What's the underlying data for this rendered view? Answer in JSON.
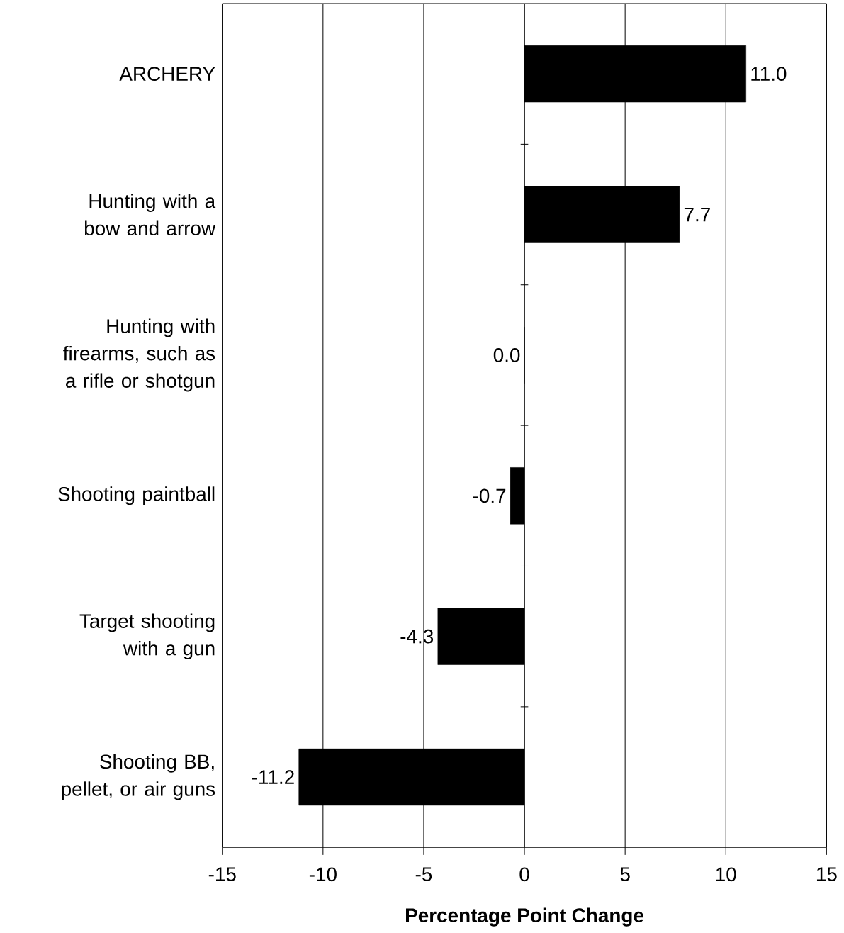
{
  "chart_data": {
    "type": "bar",
    "orientation": "horizontal",
    "xlabel": "Percentage Point Change",
    "categories": [
      "ARCHERY",
      "Hunting with a bow and arrow",
      "Hunting with firearms, such as a rifle or shotgun",
      "Shooting paintball",
      "Target shooting with a gun",
      "Shooting BB, pellet, or air guns"
    ],
    "values": [
      11.0,
      7.7,
      0.0,
      -0.7,
      -4.3,
      -11.2
    ],
    "value_labels": [
      "11.0",
      "7.7",
      "0.0",
      "-0.7",
      "-4.3",
      "-11.2"
    ],
    "color": "#000000",
    "xlim": [
      -15,
      15
    ],
    "xticks": [
      -15,
      -10,
      -5,
      0,
      5,
      10,
      15
    ],
    "grid": "x"
  }
}
